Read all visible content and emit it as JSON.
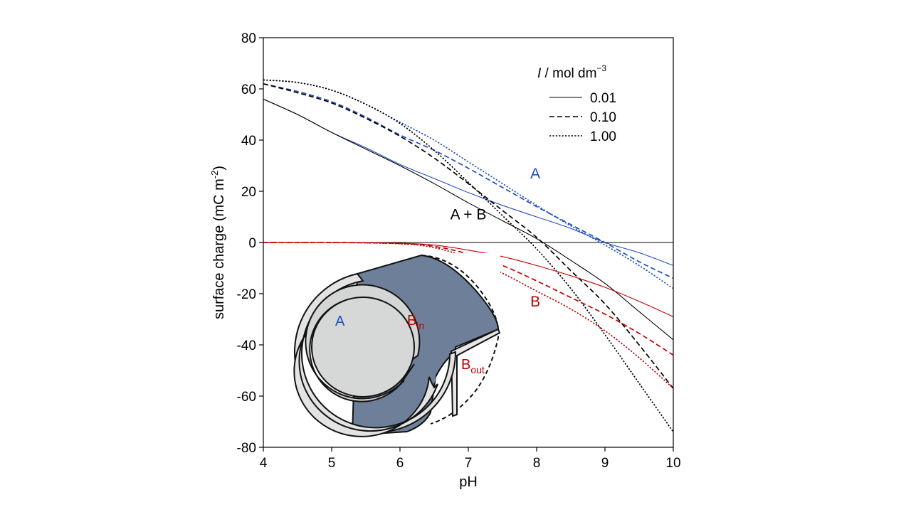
{
  "chart_data": {
    "type": "line",
    "xlabel": "pH",
    "ylabel": "surface charge (mC m",
    "ylabel_sup": "-2",
    "ylabel_tail": ")",
    "xlim": [
      4,
      10
    ],
    "ylim": [
      -80,
      80
    ],
    "xticks": [
      4,
      5,
      6,
      7,
      8,
      9,
      10
    ],
    "yticks": [
      -80,
      -60,
      -40,
      -20,
      0,
      20,
      40,
      60,
      80
    ],
    "zero_line": true,
    "legend": {
      "position": "top-right",
      "title_italic": "I",
      "title_rest": " / mol dm",
      "title_sup": "−3",
      "entries": [
        {
          "label": "0.01",
          "style": "solid"
        },
        {
          "label": "0.10",
          "style": "dashed"
        },
        {
          "label": "1.00",
          "style": "dotted"
        }
      ]
    },
    "annotations": [
      {
        "text": "A",
        "x": 7.98,
        "y": 25,
        "color": "#1f4fbf"
      },
      {
        "text": "A + B",
        "x": 7.0,
        "y": 9,
        "color": "#000000"
      },
      {
        "text": "B",
        "x": 7.98,
        "y": -25,
        "color": "#c00000"
      }
    ],
    "series": [
      {
        "group": "A",
        "I": "0.01",
        "style": "solid",
        "color": "#1f4fbf",
        "x": [
          4,
          4.5,
          5,
          5.5,
          6,
          6.5,
          7,
          7.5,
          8,
          8.5,
          9,
          9.5,
          10
        ],
        "y": [
          56,
          50,
          43,
          37,
          30.5,
          25,
          19.5,
          14.5,
          10,
          5.5,
          0,
          -4,
          -9
        ]
      },
      {
        "group": "A",
        "I": "0.10",
        "style": "dashed",
        "color": "#1f4fbf",
        "x": [
          4,
          4.5,
          5,
          5.5,
          6,
          6.5,
          7,
          7.5,
          8,
          8.5,
          9,
          9.5,
          10
        ],
        "y": [
          62,
          59,
          55,
          49,
          42,
          36,
          29,
          21.5,
          14,
          7,
          0,
          -7.5,
          -14
        ]
      },
      {
        "group": "A",
        "I": "1.00",
        "style": "dotted",
        "color": "#1f4fbf",
        "x": [
          4,
          4.5,
          5,
          5.5,
          6,
          6.5,
          7,
          7.5,
          8,
          8.5,
          9,
          9.5,
          10
        ],
        "y": [
          63.5,
          62.5,
          59.5,
          54,
          47,
          40,
          31.5,
          23,
          14.5,
          6.5,
          -1,
          -9,
          -18
        ]
      },
      {
        "group": "A + B",
        "I": "0.01",
        "style": "solid",
        "color": "#000000",
        "x": [
          4,
          4.5,
          5,
          5.5,
          6,
          6.5,
          7,
          7.5,
          8,
          8.5,
          9,
          9.5,
          10
        ],
        "y": [
          56,
          50,
          43,
          36.5,
          30,
          23,
          15.5,
          8.5,
          1.5,
          -7,
          -16,
          -27,
          -38
        ]
      },
      {
        "group": "A + B",
        "I": "0.10",
        "style": "dashed",
        "color": "#000000",
        "x": [
          4,
          4.5,
          5,
          5.5,
          6,
          6.5,
          7,
          7.5,
          8,
          8.5,
          9,
          9.5,
          10
        ],
        "y": [
          62,
          58.5,
          54.5,
          48.5,
          41.5,
          33,
          23,
          12.5,
          2,
          -11,
          -24,
          -40,
          -57
        ]
      },
      {
        "group": "A + B",
        "I": "1.00",
        "style": "dotted",
        "color": "#000000",
        "x": [
          4,
          4.5,
          5,
          5.5,
          6,
          6.5,
          7,
          7.5,
          8,
          8.5,
          9,
          9.5,
          10
        ],
        "y": [
          63.5,
          62.5,
          59.5,
          54,
          46.5,
          36,
          23.5,
          10.5,
          -2.5,
          -18,
          -36,
          -55,
          -74
        ]
      },
      {
        "group": "B",
        "I": "0.01",
        "style": "solid",
        "color": "#c00000",
        "x": [
          4,
          5,
          6,
          6.5,
          7,
          7.5,
          8,
          8.5,
          9,
          9.5,
          10
        ],
        "y": [
          0,
          0,
          -0.3,
          -1,
          -3,
          -5.5,
          -9,
          -13,
          -17.5,
          -23,
          -29
        ]
      },
      {
        "group": "B",
        "I": "0.10",
        "style": "dashed",
        "color": "#c00000",
        "x": [
          4,
          5,
          6,
          6.5,
          7,
          7.5,
          8,
          8.5,
          9,
          9.5,
          10
        ],
        "y": [
          0,
          0,
          -0.4,
          -1.5,
          -4.5,
          -9,
          -15,
          -21.5,
          -28,
          -35.5,
          -44
        ]
      },
      {
        "group": "B",
        "I": "1.00",
        "style": "dotted",
        "color": "#c00000",
        "x": [
          4,
          5,
          6,
          6.5,
          7,
          7.5,
          8,
          8.5,
          9,
          9.5,
          10
        ],
        "y": [
          0,
          0,
          -0.5,
          -2,
          -6,
          -12,
          -19,
          -26,
          -34.5,
          -45,
          -57
        ]
      }
    ],
    "inset": {
      "labels": [
        {
          "text": "A",
          "color": "#1f4fbf"
        },
        {
          "text": "B",
          "sub": "in",
          "color": "#c00000"
        },
        {
          "text": "B",
          "sub": "out",
          "color": "#c00000"
        }
      ]
    }
  }
}
